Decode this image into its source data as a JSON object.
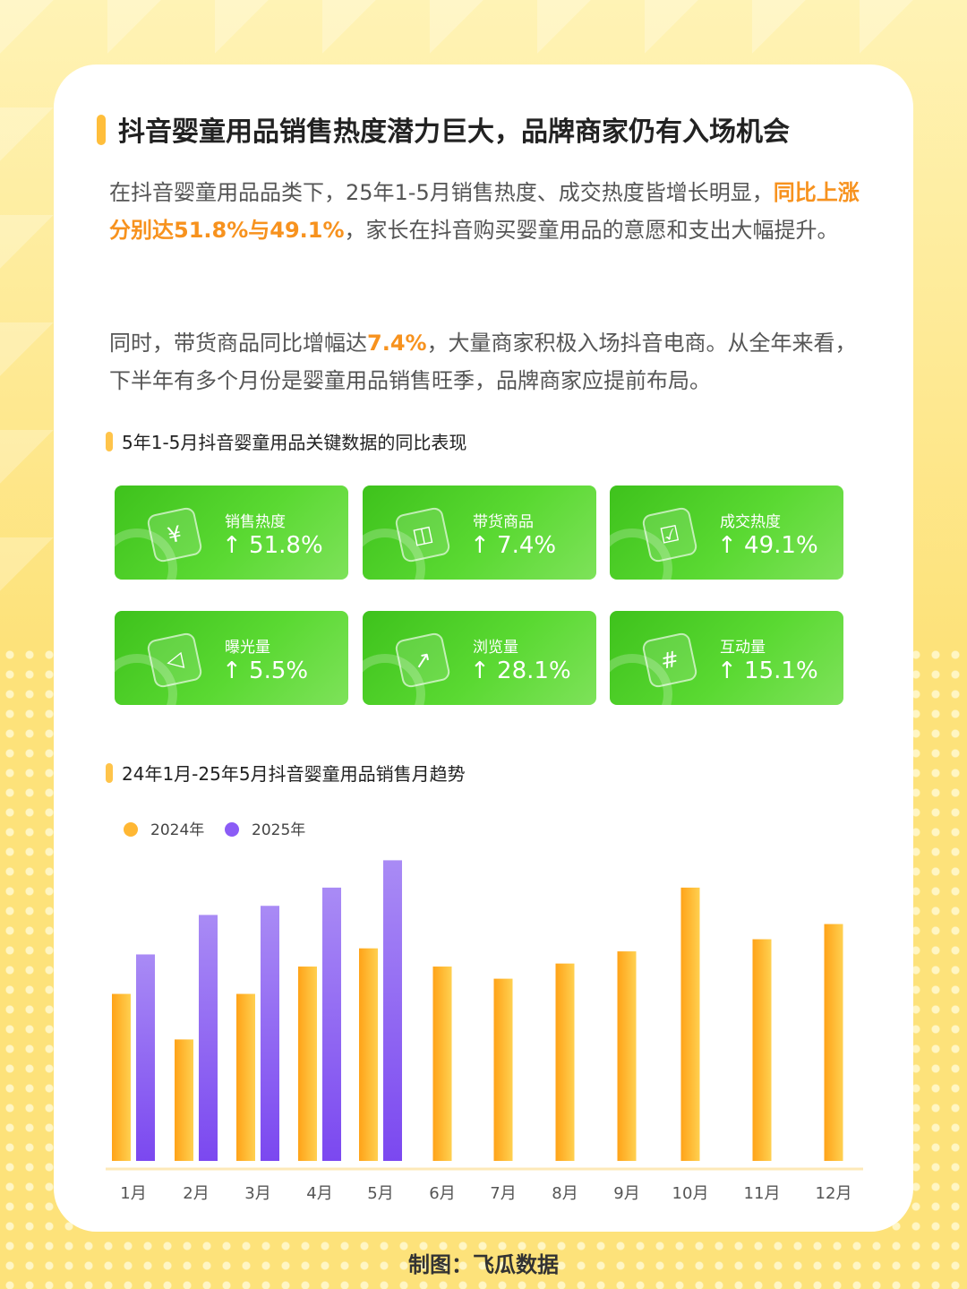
{
  "title": "抖音婴童用品销售热度潜力巨大，品牌商家仍有入场机会",
  "paragraph1": {
    "text_before": "在抖音婴童用品品类下，25年1-5月销售热度、成交热度皆增长明显，",
    "highlight": "同比上涨分别达51.8%与49.1%",
    "text_after": "，家长在抖音购买婴童用品的意愿和支出大幅提升。"
  },
  "paragraph2": {
    "text_before": "同时，带货商品同比增幅达",
    "highlight": "7.4%",
    "text_after": "，大量商家积极入场抖音电商。从全年来看，下半年有多个月份是婴童用品销售旺季，品牌商家应提前布局。"
  },
  "kpi_section_title": "5年1-5月抖音婴童用品关键数据的同比表现",
  "kpis": [
    {
      "label": "销售热度",
      "value": "↑ 51.8%",
      "icon": "yen-icon"
    },
    {
      "label": "带货商品",
      "value": "↑ 7.4%",
      "icon": "shopping-bag-icon"
    },
    {
      "label": "成交热度",
      "value": "↑ 49.1%",
      "icon": "checklist-icon"
    },
    {
      "label": "曝光量",
      "value": "↑ 5.5%",
      "icon": "megaphone-icon"
    },
    {
      "label": "浏览量",
      "value": "↑ 28.1%",
      "icon": "presentation-icon"
    },
    {
      "label": "互动量",
      "value": "↑ 15.1%",
      "icon": "hashtag-icon"
    }
  ],
  "chart_section_title": "24年1月-25年5月抖音婴童用品销售月趋势",
  "chart_data": {
    "type": "bar",
    "categories": [
      "1月",
      "2月",
      "3月",
      "4月",
      "5月",
      "6月",
      "7月",
      "8月",
      "9月",
      "10月",
      "11月",
      "12月"
    ],
    "series": [
      {
        "name": "2024年",
        "color": "#ffb733",
        "values": [
          55,
          40,
          55,
          64,
          70,
          64,
          60,
          65,
          69,
          90,
          73,
          78
        ]
      },
      {
        "name": "2025年",
        "color": "#8b5cf6",
        "values": [
          68,
          81,
          84,
          90,
          99,
          null,
          null,
          null,
          null,
          null,
          null,
          null
        ]
      }
    ],
    "ylim": [
      0,
      100
    ],
    "legend_position": "top-left"
  },
  "footer": "制图：飞瓜数据"
}
